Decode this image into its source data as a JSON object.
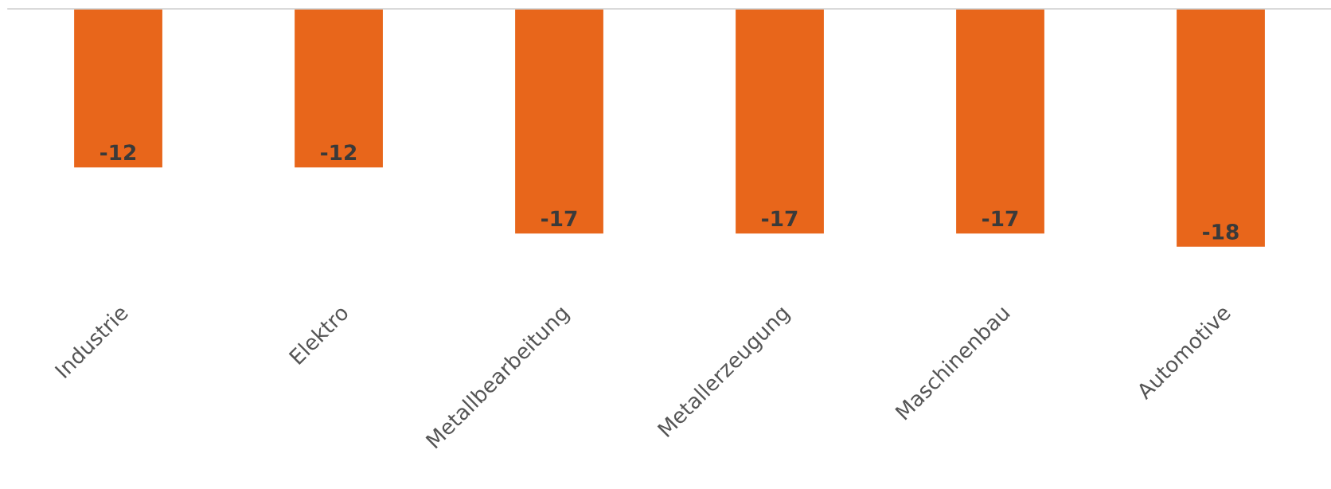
{
  "chart_data": {
    "type": "bar",
    "categories": [
      "Industrie",
      "Elektro",
      "Metallbearbeitung",
      "Metallerzeugung",
      "Maschinenbau",
      "Automotive"
    ],
    "values": [
      -12,
      -12,
      -17,
      -17,
      -17,
      -18
    ],
    "color": "#e8661b",
    "data_labels": true,
    "tick_labels": "x",
    "grid": false,
    "legend": false
  }
}
